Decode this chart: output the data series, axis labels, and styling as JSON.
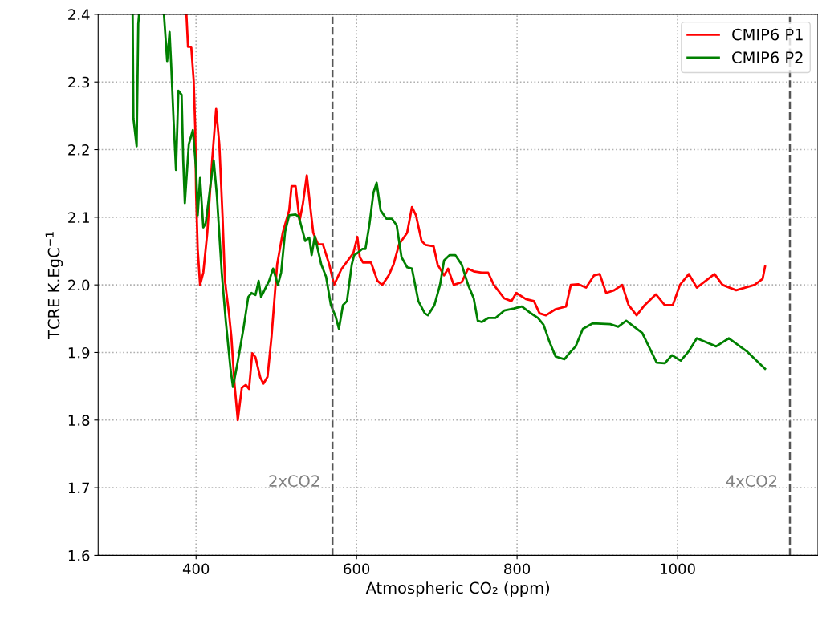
{
  "chart_data": {
    "type": "line",
    "xlabel": "Atmospheric CO₂ (ppm)",
    "ylabel": "TCRE K.EgC$^{−1}$",
    "xlim": [
      278,
      1175
    ],
    "ylim": [
      1.6,
      2.4
    ],
    "xticks": [
      400,
      600,
      800,
      1000
    ],
    "yticks": [
      1.6,
      1.7,
      1.8,
      1.9,
      {
        "value": 2,
        "label": "2.0"
      },
      2.1,
      2.2,
      2.3,
      2.4
    ],
    "grid": true,
    "legend": "top right",
    "line_style": "solid",
    "marker": "none",
    "ref_lines": [
      {
        "axis": "x",
        "value": 570,
        "label": "2xCO2",
        "color": "#555555",
        "line_style": "dashed"
      },
      {
        "axis": "x",
        "value": 1140,
        "label": "4xCO2",
        "color": "#555555",
        "line_style": "dashed"
      }
    ],
    "series": [
      {
        "name": "CMIP6 P1",
        "color": "#ff0000",
        "x": [
          388,
          390,
          394,
          397,
          399,
          400,
          402,
          405,
          409,
          414,
          420,
          425,
          429,
          433,
          436,
          441,
          444,
          448,
          452,
          457,
          462,
          466,
          470,
          474,
          480,
          484,
          489,
          494,
          501,
          508,
          516,
          519,
          524,
          529,
          533,
          538,
          542,
          546,
          552,
          558,
          566,
          572,
          581,
          596,
          601,
          604,
          608,
          618,
          626,
          632,
          640,
          646,
          653,
          663,
          669,
          674,
          681,
          686,
          696,
          701,
          709,
          714,
          721,
          731,
          739,
          746,
          756,
          764,
          771,
          784,
          793,
          799,
          811,
          821,
          828,
          836,
          848,
          861,
          867,
          876,
          886,
          896,
          903,
          911,
          921,
          931,
          939,
          949,
          959,
          973,
          984,
          994,
          1003,
          1014,
          1024,
          1046,
          1056,
          1073,
          1096,
          1106,
          1109
        ],
        "values": [
          2.4,
          2.352,
          2.352,
          2.303,
          2.231,
          2.136,
          2.053,
          2.0,
          2.018,
          2.077,
          2.184,
          2.26,
          2.208,
          2.101,
          2.006,
          1.958,
          1.923,
          1.852,
          1.8,
          1.848,
          1.852,
          1.846,
          1.899,
          1.893,
          1.863,
          1.854,
          1.864,
          1.923,
          2.03,
          2.077,
          2.11,
          2.146,
          2.146,
          2.095,
          2.119,
          2.162,
          2.119,
          2.077,
          2.06,
          2.06,
          2.03,
          2.0,
          2.023,
          2.047,
          2.071,
          2.041,
          2.033,
          2.033,
          2.006,
          2.0,
          2.014,
          2.03,
          2.06,
          2.077,
          2.115,
          2.103,
          2.065,
          2.059,
          2.057,
          2.03,
          2.014,
          2.024,
          2.0,
          2.004,
          2.024,
          2.02,
          2.018,
          2.018,
          2.0,
          1.98,
          1.976,
          1.988,
          1.979,
          1.976,
          1.958,
          1.955,
          1.964,
          1.968,
          2.0,
          2.001,
          1.996,
          2.014,
          2.016,
          1.988,
          1.992,
          2.0,
          1.97,
          1.955,
          1.97,
          1.986,
          1.97,
          1.97,
          2.0,
          2.016,
          1.996,
          2.016,
          2.0,
          1.992,
          2.0,
          2.009,
          2.027
        ]
      },
      {
        "name": "CMIP6 P2",
        "color": "#008000",
        "x": [
          321,
          322,
          326,
          328,
          329,
          344,
          360,
          364,
          367,
          369,
          372,
          375,
          378,
          382,
          384,
          386,
          391,
          396,
          400,
          402,
          405,
          409,
          412,
          418,
          422,
          426,
          432,
          437,
          443,
          446,
          452,
          459,
          465,
          469,
          474,
          478,
          481,
          486,
          491,
          496,
          502,
          506,
          511,
          516,
          524,
          528,
          536,
          541,
          544,
          548,
          556,
          562,
          568,
          574,
          578,
          583,
          588,
          594,
          597,
          601,
          607,
          611,
          616,
          621,
          625,
          630,
          637,
          644,
          650,
          656,
          663,
          669,
          677,
          685,
          689,
          697,
          704,
          709,
          716,
          723,
          731,
          739,
          746,
          751,
          756,
          764,
          773,
          784,
          796,
          806,
          816,
          826,
          833,
          840,
          848,
          859,
          866,
          873,
          882,
          894,
          916,
          926,
          936,
          956,
          974,
          984,
          993,
          1004,
          1014,
          1024,
          1048,
          1064,
          1086,
          1109
        ],
        "values": [
          2.4,
          2.246,
          2.205,
          2.386,
          2.4,
          null,
          2.4,
          2.331,
          2.374,
          2.326,
          2.243,
          2.17,
          2.287,
          2.281,
          2.184,
          2.121,
          2.208,
          2.229,
          2.172,
          2.103,
          2.158,
          2.085,
          2.091,
          2.148,
          2.184,
          2.131,
          2.018,
          1.947,
          1.875,
          1.849,
          1.887,
          1.935,
          1.982,
          1.988,
          1.985,
          2.006,
          1.982,
          1.994,
          2.006,
          2.024,
          2.0,
          2.018,
          2.079,
          2.103,
          2.104,
          2.101,
          2.065,
          2.07,
          2.044,
          2.072,
          2.03,
          2.012,
          1.97,
          1.953,
          1.935,
          1.97,
          1.976,
          2.03,
          2.044,
          2.047,
          2.053,
          2.053,
          2.089,
          2.136,
          2.151,
          2.11,
          2.098,
          2.098,
          2.088,
          2.041,
          2.026,
          2.024,
          1.976,
          1.958,
          1.955,
          1.97,
          2.0,
          2.036,
          2.044,
          2.044,
          2.03,
          2.0,
          1.98,
          1.947,
          1.945,
          1.951,
          1.951,
          1.962,
          1.965,
          1.968,
          1.959,
          1.951,
          1.941,
          1.917,
          1.894,
          1.89,
          1.9,
          1.909,
          1.935,
          1.943,
          1.942,
          1.938,
          1.947,
          1.929,
          1.885,
          1.884,
          1.896,
          1.888,
          1.902,
          1.921,
          1.909,
          1.921,
          1.902,
          1.876
        ]
      }
    ]
  }
}
